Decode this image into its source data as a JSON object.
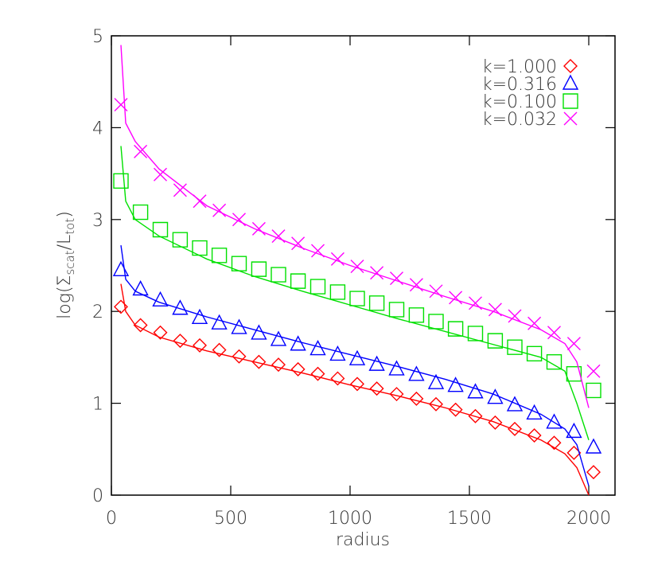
{
  "chart_data": {
    "type": "scatter",
    "xlabel": "radius",
    "ylabel_parts": [
      "log(Σ",
      "scat",
      "/L",
      "tot",
      ")"
    ],
    "xlim": [
      0,
      2110
    ],
    "ylim": [
      0,
      5
    ],
    "xticks": [
      0,
      500,
      1000,
      1500,
      2000
    ],
    "yticks": [
      0,
      1,
      2,
      3,
      4,
      5
    ],
    "x": [
      40,
      122,
      205,
      288,
      370,
      452,
      535,
      618,
      700,
      782,
      865,
      948,
      1030,
      1112,
      1195,
      1278,
      1360,
      1442,
      1525,
      1608,
      1690,
      1772,
      1855,
      1938,
      2020
    ],
    "line_x": [
      40,
      60,
      100,
      200,
      400,
      600,
      800,
      1000,
      1200,
      1400,
      1600,
      1800,
      1900,
      1950,
      2000
    ],
    "series": [
      {
        "name": "k=1.000",
        "color": "#ff0000",
        "marker": "diamond",
        "values": [
          2.05,
          1.85,
          1.77,
          1.68,
          1.63,
          1.58,
          1.51,
          1.45,
          1.42,
          1.37,
          1.32,
          1.27,
          1.21,
          1.16,
          1.1,
          1.05,
          0.99,
          0.93,
          0.86,
          0.79,
          0.72,
          0.65,
          0.57,
          0.46,
          0.25
        ],
        "line_values": [
          2.3,
          2.0,
          1.85,
          1.72,
          1.57,
          1.45,
          1.33,
          1.2,
          1.08,
          0.95,
          0.8,
          0.6,
          0.45,
          0.3,
          0.0
        ]
      },
      {
        "name": "k=0.316",
        "color": "#0000ff",
        "marker": "triangle",
        "values": [
          2.45,
          2.24,
          2.12,
          2.03,
          1.93,
          1.87,
          1.82,
          1.76,
          1.69,
          1.64,
          1.59,
          1.53,
          1.48,
          1.42,
          1.37,
          1.31,
          1.22,
          1.19,
          1.12,
          1.06,
          0.98,
          0.89,
          0.79,
          0.69,
          0.52
        ],
        "line_values": [
          2.72,
          2.35,
          2.22,
          2.1,
          1.94,
          1.8,
          1.66,
          1.53,
          1.4,
          1.26,
          1.1,
          0.88,
          0.72,
          0.55,
          0.1
        ]
      },
      {
        "name": "k=0.100",
        "color": "#00e000",
        "marker": "square",
        "values": [
          3.42,
          3.08,
          2.89,
          2.78,
          2.69,
          2.61,
          2.52,
          2.46,
          2.4,
          2.33,
          2.27,
          2.21,
          2.14,
          2.09,
          2.02,
          1.96,
          1.89,
          1.81,
          1.76,
          1.68,
          1.61,
          1.54,
          1.45,
          1.32,
          1.14
        ],
        "line_values": [
          3.8,
          3.2,
          3.0,
          2.82,
          2.57,
          2.38,
          2.22,
          2.07,
          1.92,
          1.78,
          1.64,
          1.5,
          1.35,
          1.0,
          0.6
        ]
      },
      {
        "name": "k=0.032",
        "color": "#ff00ff",
        "marker": "x",
        "values": [
          4.25,
          3.74,
          3.49,
          3.32,
          3.2,
          3.1,
          3.0,
          2.9,
          2.82,
          2.74,
          2.66,
          2.57,
          2.49,
          2.42,
          2.36,
          2.29,
          2.22,
          2.15,
          2.09,
          2.02,
          1.95,
          1.87,
          1.77,
          1.65,
          1.35
        ],
        "line_values": [
          4.9,
          4.05,
          3.85,
          3.55,
          3.15,
          2.9,
          2.69,
          2.5,
          2.33,
          2.16,
          2.0,
          1.8,
          1.65,
          1.45,
          0.95
        ]
      }
    ],
    "legend": "upper right"
  }
}
